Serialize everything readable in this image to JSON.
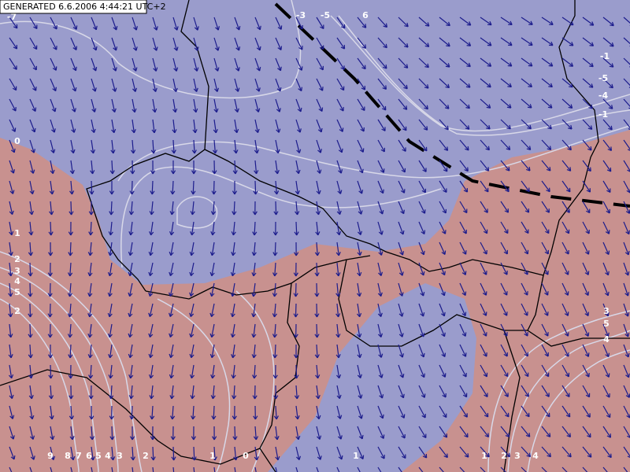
{
  "header": {
    "generated": "GENERATED 6.6.2006 4:44:21 UTC+2"
  },
  "contour_labels": [
    "-7",
    "-3",
    "-5",
    "6",
    "-1",
    "-5",
    "-4",
    "-1",
    "0",
    "1",
    "2",
    "3",
    "4",
    "5",
    "2",
    "3",
    "5",
    "4",
    "9",
    "8",
    "7",
    "6",
    "5",
    "4",
    "3",
    "2",
    "1",
    "0",
    "1",
    "1",
    "2",
    "3",
    "4"
  ]
}
